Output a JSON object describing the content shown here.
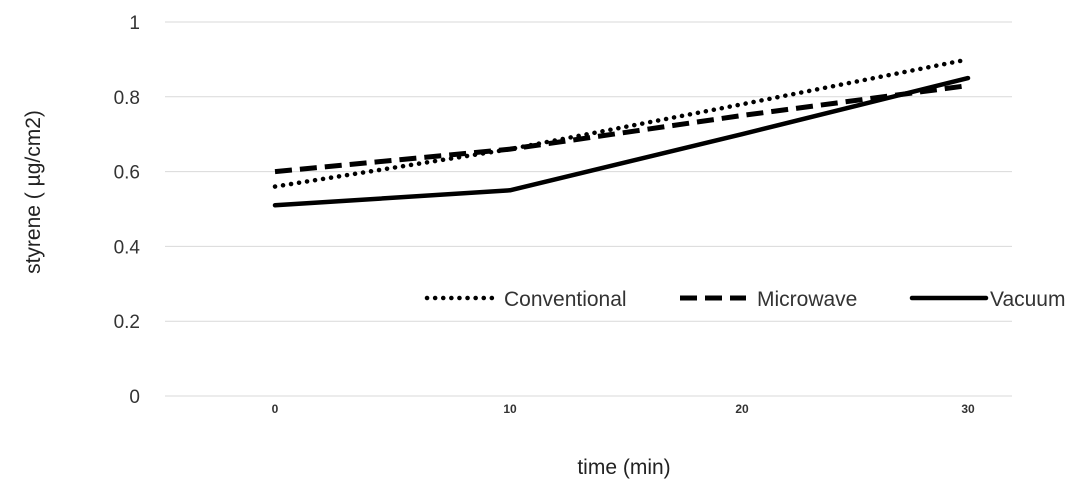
{
  "chart_data": {
    "type": "line",
    "title": "",
    "xlabel": "time (min)",
    "ylabel": "styrene ( µg/cm2)",
    "categories": [
      "0",
      "10",
      "20",
      "30"
    ],
    "x": [
      0,
      10,
      20,
      30
    ],
    "ylim": [
      0,
      1
    ],
    "yticks": [
      "0",
      "0.2",
      "0.4",
      "0.6",
      "0.8",
      "1"
    ],
    "grid": true,
    "legend_position": "inside-bottom-right",
    "series": [
      {
        "name": "Conventional",
        "values": [
          0.56,
          0.66,
          0.78,
          0.9
        ],
        "style": "dotted",
        "color": "#000000"
      },
      {
        "name": "Microwave",
        "values": [
          0.6,
          0.66,
          0.75,
          0.83
        ],
        "style": "dashed",
        "color": "#000000"
      },
      {
        "name": "Vacuum",
        "values": [
          0.51,
          0.55,
          0.7,
          0.85
        ],
        "style": "solid",
        "color": "#000000"
      }
    ]
  }
}
